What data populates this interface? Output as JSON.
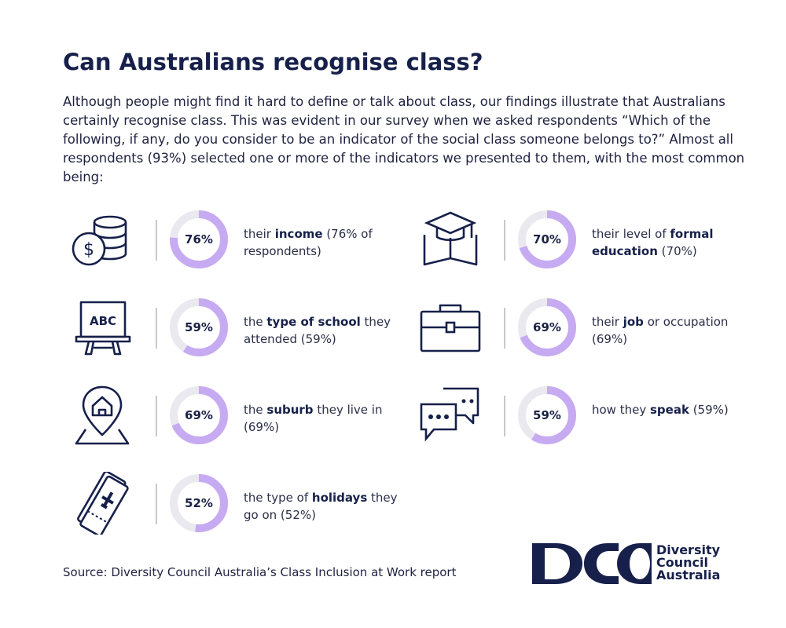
{
  "title": "Can Australians recognise class?",
  "intro": "Although people might find it hard to define or talk about class, our findings illustrate that Australians certainly recognise class. This was evident in our survey when we asked respondents “Which of the following, if any, do you consider to be an indicator of the social class someone belongs to?” Almost all respondents (93%) selected one or more of the indicators we presented to them, with the most common being:",
  "colors": {
    "accent": "#c6aaf2",
    "track": "#e9e9ef",
    "navy": "#16204a"
  },
  "items": [
    {
      "icon": "money-coins-icon",
      "value": 76,
      "pct": "76%",
      "pre": "their ",
      "bold": "income",
      "post": " (76% of respondents)"
    },
    {
      "icon": "abc-board-icon",
      "value": 59,
      "pct": "59%",
      "pre": "the ",
      "bold": "type of school",
      "post": " they attended (59%)"
    },
    {
      "icon": "house-location-icon",
      "value": 69,
      "pct": "69%",
      "pre": "the ",
      "bold": "suburb",
      "post": " they live in (69%)"
    },
    {
      "icon": "plane-tickets-icon",
      "value": 52,
      "pct": "52%",
      "pre": "the type of ",
      "bold": "holidays",
      "post": " they go on (52%)"
    },
    {
      "icon": "graduation-cap-icon",
      "value": 70,
      "pct": "70%",
      "pre": "their level of ",
      "bold": "formal education",
      "post": " (70%)"
    },
    {
      "icon": "briefcase-icon",
      "value": 69,
      "pct": "69%",
      "pre": "their ",
      "bold": "job",
      "post": " or occupation (69%)"
    },
    {
      "icon": "speech-bubbles-icon",
      "value": 59,
      "pct": "59%",
      "pre": "how they ",
      "bold": "speak",
      "post": " (59%)"
    }
  ],
  "source": "Source: Diversity Council Australia’s Class Inclusion at Work report",
  "logo": {
    "mark": "DCA",
    "line1": "Diversity",
    "line2": "Council",
    "line3": "Australia"
  }
}
